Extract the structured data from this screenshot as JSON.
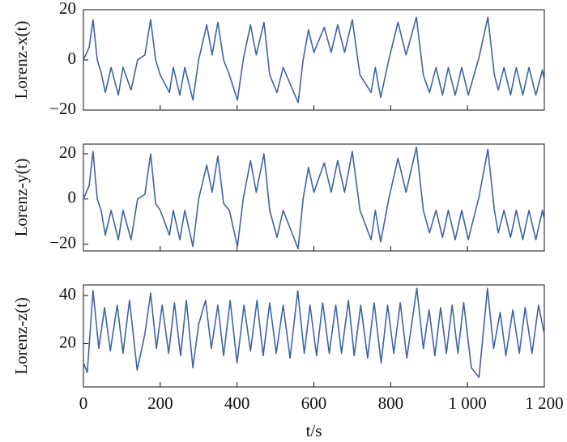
{
  "chart_data": [
    {
      "type": "line",
      "ylabel": "Lorenz-x(t)",
      "color": "#3e64a6",
      "ylim": [
        -20,
        20
      ],
      "yticks": [
        20,
        0,
        {
          "value": -20,
          "label": "−20"
        }
      ],
      "x": [
        0,
        15,
        25,
        36,
        46,
        57,
        72,
        91,
        103,
        124,
        141,
        160,
        175,
        188,
        200,
        224,
        234,
        251,
        264,
        285,
        300,
        321,
        335,
        350,
        365,
        380,
        401,
        416,
        435,
        450,
        470,
        485,
        504,
        520,
        559,
        572,
        586,
        600,
        627,
        645,
        662,
        680,
        700,
        720,
        749,
        760,
        774,
        795,
        819,
        840,
        867,
        885,
        901,
        918,
        935,
        950,
        968,
        985,
        1002,
        1030,
        1053,
        1070,
        1080,
        1095,
        1112,
        1127,
        1144,
        1160,
        1178,
        1195,
        1200
      ],
      "values": [
        0,
        5,
        16,
        0,
        -5,
        -13,
        -3,
        -14,
        -3,
        -12,
        0,
        2,
        16,
        0,
        -6,
        -13,
        -3,
        -14,
        -3,
        -16,
        0,
        14,
        2,
        15,
        0,
        -6,
        -16,
        0,
        14,
        2,
        15,
        -6,
        -13,
        -3,
        -17,
        0,
        12,
        3,
        13,
        3,
        14,
        3,
        16,
        -6,
        -13,
        -3,
        -15,
        0,
        15,
        2,
        17,
        -6,
        -13,
        -3,
        -14,
        -3,
        -14,
        -3,
        -14,
        1,
        17,
        -6,
        -12,
        -3,
        -14,
        -3,
        -14,
        -3,
        -14,
        -4,
        -8
      ]
    },
    {
      "type": "line",
      "ylabel": "Lorenz-y(t)",
      "color": "#3e64a6",
      "ylim": [
        -23,
        24.3
      ],
      "yticks": [
        20,
        0,
        {
          "value": -20,
          "label": "−20"
        }
      ],
      "x": [
        0,
        15,
        25,
        36,
        46,
        57,
        72,
        91,
        103,
        124,
        141,
        160,
        175,
        188,
        200,
        224,
        234,
        251,
        264,
        285,
        300,
        321,
        335,
        350,
        365,
        380,
        401,
        416,
        435,
        450,
        470,
        485,
        504,
        520,
        559,
        572,
        586,
        600,
        627,
        645,
        662,
        680,
        700,
        720,
        749,
        760,
        774,
        795,
        819,
        840,
        867,
        885,
        901,
        918,
        935,
        950,
        968,
        985,
        1002,
        1030,
        1053,
        1070,
        1080,
        1095,
        1112,
        1127,
        1144,
        1160,
        1178,
        1195,
        1200
      ],
      "values": [
        0,
        6,
        21,
        0,
        -5,
        -16,
        -5,
        -18,
        -5,
        -18,
        0,
        2,
        20,
        -2,
        -5,
        -16,
        -5,
        -18,
        -5,
        -21,
        0,
        15,
        3,
        19,
        -2,
        -5,
        -21,
        0,
        17,
        3,
        20,
        -5,
        -17,
        -5,
        -22,
        0,
        14,
        3,
        16,
        3,
        17,
        3,
        21,
        -5,
        -18,
        -5,
        -19,
        0,
        18,
        3,
        23,
        -5,
        -15,
        -5,
        -17,
        -5,
        -18,
        -5,
        -18,
        1,
        22,
        -5,
        -15,
        -5,
        -17,
        -5,
        -18,
        -5,
        -18,
        -5,
        -9
      ]
    },
    {
      "type": "line",
      "ylabel": "Lorenz-z(t)",
      "xlabel": "t/s",
      "color": "#3e64a6",
      "ylim": [
        2,
        44.4
      ],
      "yticks": [
        40,
        20
      ],
      "xlim": [
        0,
        1200
      ],
      "xticks": [
        0,
        200,
        400,
        600,
        800,
        {
          "value": 1000,
          "label": "1 000"
        },
        {
          "value": 1200,
          "label": "1 200"
        }
      ],
      "x": [
        0,
        10,
        25,
        40,
        55,
        70,
        88,
        103,
        120,
        140,
        160,
        175,
        190,
        205,
        222,
        237,
        253,
        268,
        285,
        300,
        318,
        333,
        350,
        365,
        382,
        400,
        418,
        435,
        452,
        468,
        485,
        502,
        520,
        538,
        558,
        575,
        590,
        607,
        623,
        640,
        657,
        672,
        690,
        705,
        722,
        740,
        757,
        775,
        792,
        808,
        825,
        842,
        868,
        885,
        900,
        915,
        930,
        945,
        960,
        975,
        990,
        1010,
        1030,
        1052,
        1068,
        1085,
        1100,
        1118,
        1135,
        1150,
        1168,
        1185,
        1200
      ],
      "values": [
        12,
        8,
        42,
        18,
        35,
        17,
        36,
        16,
        38,
        9,
        24,
        41,
        18,
        36,
        16,
        37,
        15,
        38,
        10,
        28,
        38,
        18,
        36,
        15,
        38,
        12,
        36,
        17,
        38,
        15,
        37,
        16,
        36,
        14,
        42,
        16,
        36,
        15,
        37,
        16,
        36,
        16,
        38,
        15,
        36,
        14,
        37,
        12,
        36,
        16,
        37,
        14,
        43,
        18,
        34,
        15,
        35,
        16,
        36,
        16,
        37,
        10,
        6,
        43,
        18,
        33,
        15,
        34,
        16,
        35,
        16,
        36,
        24
      ]
    }
  ]
}
